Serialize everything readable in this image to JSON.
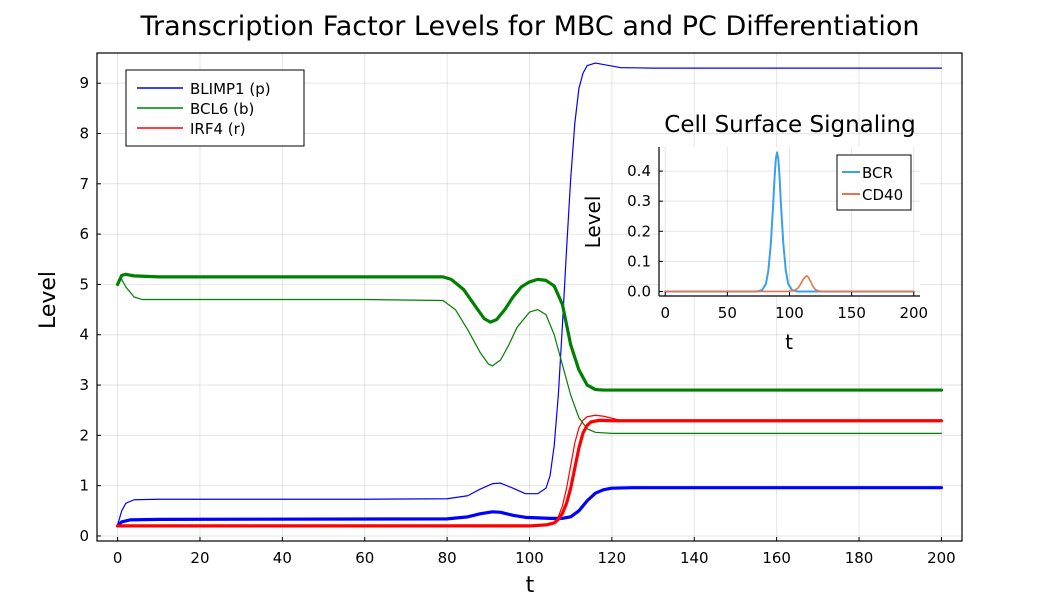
{
  "chart_data": [
    {
      "type": "line",
      "title": "Transcription Factor Levels for MBC and PC Differentiation",
      "xlabel": "t",
      "ylabel": "Level",
      "xlim": [
        -5,
        205
      ],
      "ylim": [
        -0.1,
        9.6
      ],
      "xticks": [
        0,
        20,
        40,
        60,
        80,
        100,
        120,
        140,
        160,
        180,
        200
      ],
      "yticks": [
        0,
        1,
        2,
        3,
        4,
        5,
        6,
        7,
        8,
        9
      ],
      "grid": true,
      "legend_position": "top-left",
      "legend": [
        {
          "label": "BLIMP1 (p)",
          "color": "#0000ff"
        },
        {
          "label": "BCL6 (b)",
          "color": "#008000"
        },
        {
          "label": "IRF4 (r)",
          "color": "#ff0000"
        }
      ],
      "series": [
        {
          "name": "BLIMP1 (p)",
          "color": "#0000ff",
          "width": 1.2,
          "points": [
            [
              0,
              0.22
            ],
            [
              1,
              0.5
            ],
            [
              2,
              0.65
            ],
            [
              4,
              0.72
            ],
            [
              10,
              0.73
            ],
            [
              60,
              0.73
            ],
            [
              80,
              0.74
            ],
            [
              85,
              0.8
            ],
            [
              88,
              0.93
            ],
            [
              91,
              1.04
            ],
            [
              93,
              1.05
            ],
            [
              96,
              0.95
            ],
            [
              99,
              0.84
            ],
            [
              102,
              0.84
            ],
            [
              104,
              0.95
            ],
            [
              105,
              1.2
            ],
            [
              106,
              1.8
            ],
            [
              107,
              2.8
            ],
            [
              108,
              4.2
            ],
            [
              109,
              5.7
            ],
            [
              110,
              7.1
            ],
            [
              111,
              8.2
            ],
            [
              112,
              8.9
            ],
            [
              113,
              9.2
            ],
            [
              114,
              9.35
            ],
            [
              116,
              9.4
            ],
            [
              118,
              9.37
            ],
            [
              122,
              9.31
            ],
            [
              130,
              9.3
            ],
            [
              200,
              9.3
            ]
          ]
        },
        {
          "name": "BCL6 (b)",
          "color": "#008000",
          "width": 1.2,
          "points": [
            [
              0,
              5.05
            ],
            [
              1,
              5.1
            ],
            [
              2,
              4.95
            ],
            [
              4,
              4.75
            ],
            [
              6,
              4.7
            ],
            [
              10,
              4.7
            ],
            [
              60,
              4.7
            ],
            [
              79,
              4.68
            ],
            [
              82,
              4.5
            ],
            [
              85,
              4.1
            ],
            [
              88,
              3.65
            ],
            [
              90,
              3.42
            ],
            [
              91,
              3.38
            ],
            [
              93,
              3.5
            ],
            [
              95,
              3.8
            ],
            [
              97,
              4.15
            ],
            [
              100,
              4.45
            ],
            [
              102,
              4.5
            ],
            [
              104,
              4.4
            ],
            [
              106,
              4.0
            ],
            [
              108,
              3.4
            ],
            [
              110,
              2.8
            ],
            [
              112,
              2.35
            ],
            [
              114,
              2.13
            ],
            [
              116,
              2.06
            ],
            [
              120,
              2.04
            ],
            [
              200,
              2.04
            ]
          ]
        },
        {
          "name": "IRF4 (r)",
          "color": "#ff0000",
          "width": 1.2,
          "points": [
            [
              0,
              0.2
            ],
            [
              50,
              0.2
            ],
            [
              100,
              0.2
            ],
            [
              104,
              0.22
            ],
            [
              106,
              0.28
            ],
            [
              107,
              0.38
            ],
            [
              108,
              0.6
            ],
            [
              109,
              0.95
            ],
            [
              110,
              1.4
            ],
            [
              111,
              1.85
            ],
            [
              112,
              2.15
            ],
            [
              113,
              2.3
            ],
            [
              114,
              2.37
            ],
            [
              116,
              2.4
            ],
            [
              118,
              2.38
            ],
            [
              122,
              2.3
            ],
            [
              130,
              2.28
            ],
            [
              200,
              2.28
            ]
          ]
        },
        {
          "name": "",
          "color": "#0000ff",
          "width": 3.2,
          "points": [
            [
              0,
              0.2
            ],
            [
              1,
              0.28
            ],
            [
              3,
              0.32
            ],
            [
              10,
              0.33
            ],
            [
              80,
              0.34
            ],
            [
              85,
              0.38
            ],
            [
              88,
              0.44
            ],
            [
              91,
              0.48
            ],
            [
              93,
              0.47
            ],
            [
              96,
              0.41
            ],
            [
              99,
              0.37
            ],
            [
              105,
              0.35
            ],
            [
              108,
              0.35
            ],
            [
              110,
              0.38
            ],
            [
              112,
              0.5
            ],
            [
              114,
              0.7
            ],
            [
              116,
              0.85
            ],
            [
              118,
              0.92
            ],
            [
              120,
              0.95
            ],
            [
              125,
              0.96
            ],
            [
              200,
              0.96
            ]
          ]
        },
        {
          "name": "",
          "color": "#008000",
          "width": 3.2,
          "points": [
            [
              0,
              5.0
            ],
            [
              1,
              5.18
            ],
            [
              2,
              5.2
            ],
            [
              4,
              5.17
            ],
            [
              10,
              5.15
            ],
            [
              79,
              5.15
            ],
            [
              81,
              5.1
            ],
            [
              84,
              4.9
            ],
            [
              87,
              4.55
            ],
            [
              89,
              4.32
            ],
            [
              90.5,
              4.25
            ],
            [
              92,
              4.3
            ],
            [
              94,
              4.5
            ],
            [
              96,
              4.75
            ],
            [
              98,
              4.95
            ],
            [
              100,
              5.05
            ],
            [
              102,
              5.1
            ],
            [
              104,
              5.08
            ],
            [
              106,
              4.97
            ],
            [
              108,
              4.6
            ],
            [
              109,
              4.2
            ],
            [
              110,
              3.8
            ],
            [
              112,
              3.3
            ],
            [
              114,
              3.0
            ],
            [
              116,
              2.91
            ],
            [
              118,
              2.9
            ],
            [
              200,
              2.9
            ]
          ]
        },
        {
          "name": "",
          "color": "#ff0000",
          "width": 3.2,
          "points": [
            [
              0,
              0.2
            ],
            [
              50,
              0.2
            ],
            [
              100,
              0.2
            ],
            [
              104,
              0.22
            ],
            [
              106,
              0.26
            ],
            [
              107,
              0.33
            ],
            [
              108,
              0.45
            ],
            [
              109,
              0.65
            ],
            [
              110,
              0.95
            ],
            [
              111,
              1.35
            ],
            [
              112,
              1.75
            ],
            [
              113,
              2.05
            ],
            [
              114,
              2.2
            ],
            [
              115,
              2.27
            ],
            [
              117,
              2.3
            ],
            [
              120,
              2.29
            ],
            [
              200,
              2.29
            ]
          ]
        }
      ]
    },
    {
      "type": "line",
      "title": "Cell Surface Signaling",
      "xlabel": "t",
      "ylabel": "Level",
      "xlim": [
        -5,
        205
      ],
      "ylim": [
        -0.015,
        0.48
      ],
      "xticks": [
        0,
        50,
        100,
        150,
        200
      ],
      "yticks": [
        0.0,
        0.1,
        0.2,
        0.3,
        0.4
      ],
      "ytick_labels": [
        "0.0",
        "0.1",
        "0.2",
        "0.3",
        "0.4"
      ],
      "grid": true,
      "legend_position": "top-right",
      "legend": [
        {
          "label": "BCR",
          "color": "#3aa0ea"
        },
        {
          "label": "CD40",
          "color": "#e5754f"
        }
      ],
      "series": [
        {
          "name": "BCR",
          "color": "#3aa0ea",
          "width": 2,
          "points": [
            [
              0,
              0
            ],
            [
              74,
              0
            ],
            [
              78,
              0.005
            ],
            [
              81,
              0.025
            ],
            [
              83,
              0.07
            ],
            [
              85,
              0.16
            ],
            [
              87,
              0.3
            ],
            [
              88,
              0.38
            ],
            [
              89,
              0.44
            ],
            [
              90,
              0.462
            ],
            [
              91,
              0.44
            ],
            [
              92,
              0.38
            ],
            [
              93,
              0.3
            ],
            [
              95,
              0.16
            ],
            [
              97,
              0.07
            ],
            [
              99,
              0.025
            ],
            [
              102,
              0.005
            ],
            [
              106,
              0
            ],
            [
              200,
              0
            ]
          ]
        },
        {
          "name": "CD40",
          "color": "#e5754f",
          "width": 1.6,
          "points": [
            [
              0,
              0
            ],
            [
              98,
              0
            ],
            [
              104,
              0.004
            ],
            [
              107,
              0.012
            ],
            [
              109,
              0.025
            ],
            [
              111,
              0.04
            ],
            [
              113,
              0.05
            ],
            [
              114,
              0.052
            ],
            [
              115,
              0.048
            ],
            [
              117,
              0.033
            ],
            [
              119,
              0.016
            ],
            [
              121,
              0.006
            ],
            [
              124,
              0.001
            ],
            [
              128,
              0
            ],
            [
              200,
              0
            ]
          ]
        }
      ]
    }
  ]
}
